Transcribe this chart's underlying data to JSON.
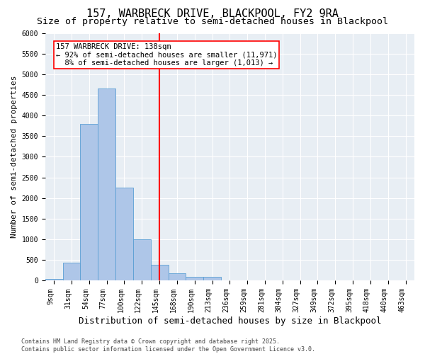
{
  "title": "157, WARBRECK DRIVE, BLACKPOOL, FY2 9RA",
  "subtitle": "Size of property relative to semi-detached houses in Blackpool",
  "xlabel": "Distribution of semi-detached houses by size in Blackpool",
  "ylabel": "Number of semi-detached properties",
  "bin_labels": [
    "9sqm",
    "31sqm",
    "54sqm",
    "77sqm",
    "100sqm",
    "122sqm",
    "145sqm",
    "168sqm",
    "190sqm",
    "213sqm",
    "236sqm",
    "259sqm",
    "281sqm",
    "304sqm",
    "327sqm",
    "349sqm",
    "372sqm",
    "395sqm",
    "418sqm",
    "440sqm",
    "463sqm"
  ],
  "bar_values": [
    50,
    430,
    3800,
    4650,
    2250,
    1000,
    380,
    185,
    100,
    90,
    10,
    0,
    0,
    0,
    0,
    0,
    0,
    0,
    0,
    0,
    0
  ],
  "bar_color": "#aec6e8",
  "bar_edge_color": "#5a9fd4",
  "vline_x_index": 6,
  "vline_color": "red",
  "annotation_text": "157 WARBRECK DRIVE: 138sqm\n← 92% of semi-detached houses are smaller (11,971)\n  8% of semi-detached houses are larger (1,013) →",
  "background_color": "#e8eef4",
  "ylim": [
    0,
    6000
  ],
  "yticks": [
    0,
    500,
    1000,
    1500,
    2000,
    2500,
    3000,
    3500,
    4000,
    4500,
    5000,
    5500,
    6000
  ],
  "footer_text": "Contains HM Land Registry data © Crown copyright and database right 2025.\nContains public sector information licensed under the Open Government Licence v3.0.",
  "title_fontsize": 11,
  "subtitle_fontsize": 9.5,
  "xlabel_fontsize": 9,
  "ylabel_fontsize": 8,
  "tick_fontsize": 7,
  "annotation_fontsize": 7.5,
  "footer_fontsize": 6
}
